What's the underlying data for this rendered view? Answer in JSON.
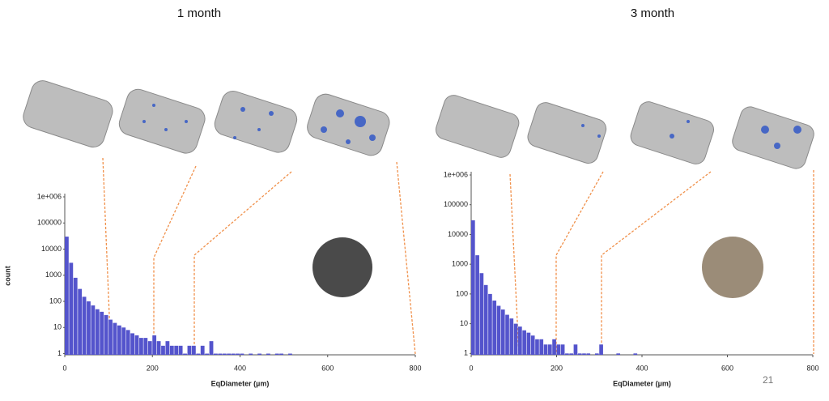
{
  "chart_data": [
    {
      "type": "histogram",
      "title": "1 month",
      "x_label": "EqDiameter (µm)",
      "y_label": "count",
      "color": "#5454cc",
      "log_y": true,
      "bins": [
        0,
        10,
        20,
        30,
        40,
        50,
        60,
        70,
        80,
        90,
        100,
        110,
        120,
        130,
        140,
        150,
        160,
        170,
        180,
        190,
        200,
        210,
        220,
        230,
        240,
        250,
        260,
        270,
        280,
        290,
        300,
        310,
        320,
        330,
        340,
        350,
        360,
        370,
        380,
        390,
        400,
        410,
        420,
        430,
        440,
        450,
        460,
        470,
        480,
        490,
        500,
        510,
        520,
        530
      ],
      "values": [
        30000,
        3000,
        800,
        300,
        150,
        100,
        70,
        50,
        40,
        30,
        20,
        15,
        12,
        10,
        8,
        6,
        5,
        4,
        4,
        3,
        5,
        3,
        2,
        3,
        2,
        2,
        2,
        1,
        2,
        2,
        1,
        2,
        1,
        3,
        1,
        1,
        1,
        1,
        1,
        1,
        1,
        0,
        1,
        0,
        1,
        0,
        1,
        0,
        1,
        1,
        0,
        1,
        0
      ],
      "xlim": [
        0,
        800
      ],
      "xticks": [
        0,
        200,
        400,
        600,
        800
      ],
      "ylim": [
        0.9,
        1000000
      ],
      "yticks": [
        1,
        10,
        100,
        1000,
        10000,
        100000,
        {
          "value": 1000000,
          "label": "1e+006"
        }
      ]
    },
    {
      "type": "histogram",
      "title": "3 month",
      "x_label": "EqDiameter (µm)",
      "color": "#5454cc",
      "log_y": true,
      "bins": [
        0,
        10,
        20,
        30,
        40,
        50,
        60,
        70,
        80,
        90,
        100,
        110,
        120,
        130,
        140,
        150,
        160,
        170,
        180,
        190,
        200,
        210,
        220,
        230,
        240,
        250,
        260,
        270,
        280,
        290,
        300,
        310,
        320,
        330,
        340,
        350,
        360,
        370,
        380,
        390,
        400
      ],
      "values": [
        30000,
        2000,
        500,
        200,
        100,
        60,
        40,
        30,
        20,
        15,
        10,
        8,
        6,
        5,
        4,
        3,
        3,
        2,
        2,
        3,
        2,
        2,
        1,
        1,
        2,
        1,
        1,
        1,
        0,
        1,
        2,
        0,
        0,
        0,
        1,
        0,
        0,
        0,
        1,
        0
      ],
      "xlim": [
        0,
        800
      ],
      "xticks": [
        0,
        200,
        400,
        600,
        800
      ],
      "ylim": [
        0.9,
        1000000
      ],
      "yticks": [
        1,
        10,
        100,
        1000,
        10000,
        100000,
        {
          "value": 1000000,
          "label": "1e+006"
        }
      ]
    }
  ],
  "page_number": "21"
}
